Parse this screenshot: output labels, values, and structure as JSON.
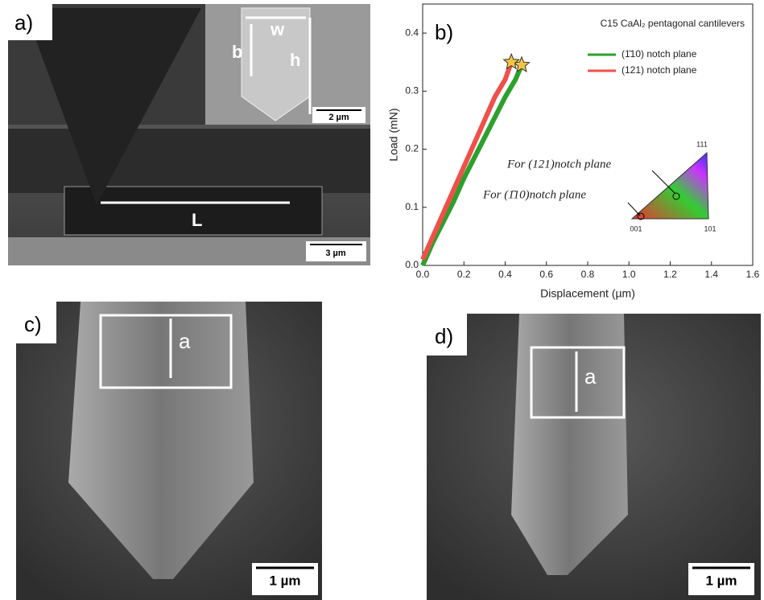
{
  "figure": {
    "panels": [
      {
        "label": "a)",
        "annotations": [
          "w",
          "b",
          "h",
          "L"
        ],
        "scale_bars": [
          "2 µm",
          "3 µm"
        ]
      },
      {
        "label": "b)"
      },
      {
        "label": "c)",
        "annotations": [
          "a"
        ],
        "scale_bars": [
          "1  µm"
        ]
      },
      {
        "label": "d)",
        "annotations": [
          "a"
        ],
        "scale_bars": [
          "1 µm"
        ]
      }
    ]
  },
  "chart_data": {
    "type": "line",
    "title": "C15 CaAl₂ pentagonal cantilevers",
    "x_label": "Displacement (µm)",
    "y_label": "Load (mN)",
    "xlim": [
      0,
      1.6
    ],
    "ylim": [
      0,
      0.45
    ],
    "xticks": [
      {
        "value": 0,
        "label": "0.0"
      },
      0.2,
      0.4,
      0.6,
      0.8,
      {
        "value": 1,
        "label": "1.0"
      },
      1.2,
      1.4,
      1.6
    ],
    "yticks": [
      {
        "value": 0,
        "label": "0.0"
      },
      0.1,
      0.2,
      0.3,
      0.4
    ],
    "end_marker": "star",
    "series": [
      {
        "name": "(1̄10) notch plane",
        "color": "#2ca02c",
        "x": [
          0,
          0.05,
          0.1,
          0.15,
          0.2,
          0.25,
          0.3,
          0.35,
          0.4,
          0.45,
          0.48
        ],
        "values": [
          0,
          0.04,
          0.075,
          0.11,
          0.15,
          0.185,
          0.22,
          0.255,
          0.29,
          0.32,
          0.345
        ]
      },
      {
        "name": "(121) notch plane",
        "color": "#f0504a",
        "x": [
          0,
          0.05,
          0.1,
          0.15,
          0.2,
          0.25,
          0.3,
          0.35,
          0.4,
          0.43
        ],
        "values": [
          0.01,
          0.05,
          0.09,
          0.13,
          0.17,
          0.21,
          0.25,
          0.29,
          0.32,
          0.35
        ]
      }
    ],
    "annotations": [
      "For (121)notch plane",
      "For (1̄10)notch plane"
    ],
    "inset_labels": [
      "111",
      "001",
      "101"
    ]
  }
}
